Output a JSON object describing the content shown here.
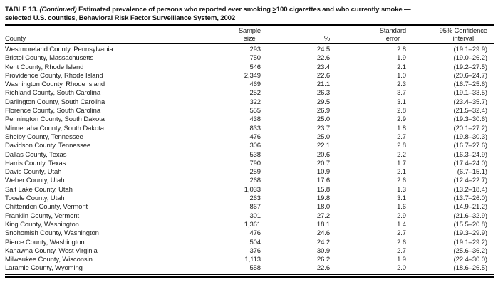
{
  "title": {
    "label": "TABLE 13.",
    "continued": "(Continued)",
    "part1": "Estimated prevalence of persons who reported ever smoking",
    "geq": ">",
    "part2": "100 cigarettes and who currently smoke —",
    "line2": "selected U.S. counties, Behavioral Risk Factor Surveillance System, 2002"
  },
  "table": {
    "columns": {
      "county": "County",
      "sample_line1": "Sample",
      "sample_line2": "size",
      "pct": "%",
      "se_line1": "Standard",
      "se_line2": "error",
      "ci_line1": "95% Confidence",
      "ci_line2": "interval"
    },
    "rows": [
      {
        "county": "Westmoreland County, Pennsylvania",
        "sample": "293",
        "pct": "24.5",
        "se": "2.8",
        "ci": "(19.1–29.9)"
      },
      {
        "county": "Bristol County, Massachusetts",
        "sample": "750",
        "pct": "22.6",
        "se": "1.9",
        "ci": "(19.0–26.2)"
      },
      {
        "county": "Kent County, Rhode Island",
        "sample": "546",
        "pct": "23.4",
        "se": "2.1",
        "ci": "(19.2–27.5)"
      },
      {
        "county": "Providence County, Rhode Island",
        "sample": "2,349",
        "pct": "22.6",
        "se": "1.0",
        "ci": "(20.6–24.7)"
      },
      {
        "county": "Washington County, Rhode Island",
        "sample": "469",
        "pct": "21.1",
        "se": "2.3",
        "ci": "(16.7–25.6)"
      },
      {
        "county": "Richland County, South Carolina",
        "sample": "252",
        "pct": "26.3",
        "se": "3.7",
        "ci": "(19.1–33.5)"
      },
      {
        "county": "Darlington County, South Carolina",
        "sample": "322",
        "pct": "29.5",
        "se": "3.1",
        "ci": "(23.4–35.7)"
      },
      {
        "county": "Florence County, South Carolina",
        "sample": "555",
        "pct": "26.9",
        "se": "2.8",
        "ci": "(21.5–32.4)"
      },
      {
        "county": "Pennington County, South Dakota",
        "sample": "438",
        "pct": "25.0",
        "se": "2.9",
        "ci": "(19.3–30.6)"
      },
      {
        "county": "Minnehaha County, South Dakota",
        "sample": "833",
        "pct": "23.7",
        "se": "1.8",
        "ci": "(20.1–27.2)"
      },
      {
        "county": "Shelby County, Tennessee",
        "sample": "476",
        "pct": "25.0",
        "se": "2.7",
        "ci": "(19.8–30.3)"
      },
      {
        "county": "Davidson County, Tennessee",
        "sample": "306",
        "pct": "22.1",
        "se": "2.8",
        "ci": "(16.7–27.6)"
      },
      {
        "county": "Dallas County, Texas",
        "sample": "538",
        "pct": "20.6",
        "se": "2.2",
        "ci": "(16.3–24.9)"
      },
      {
        "county": "Harris County, Texas",
        "sample": "790",
        "pct": "20.7",
        "se": "1.7",
        "ci": "(17.4–24.0)"
      },
      {
        "county": "Davis County, Utah",
        "sample": "259",
        "pct": "10.9",
        "se": "2.1",
        "ci": "(6.7–15.1)"
      },
      {
        "county": "Weber County, Utah",
        "sample": "268",
        "pct": "17.6",
        "se": "2.6",
        "ci": "(12.4–22.7)"
      },
      {
        "county": "Salt Lake County, Utah",
        "sample": "1,033",
        "pct": "15.8",
        "se": "1.3",
        "ci": "(13.2–18.4)"
      },
      {
        "county": "Tooele County, Utah",
        "sample": "263",
        "pct": "19.8",
        "se": "3.1",
        "ci": "(13.7–26.0)"
      },
      {
        "county": "Chittenden County, Vermont",
        "sample": "867",
        "pct": "18.0",
        "se": "1.6",
        "ci": "(14.9–21.2)"
      },
      {
        "county": "Franklin County, Vermont",
        "sample": "301",
        "pct": "27.2",
        "se": "2.9",
        "ci": "(21.6–32.9)"
      },
      {
        "county": "King County, Washington",
        "sample": "1,361",
        "pct": "18.1",
        "se": "1.4",
        "ci": "(15.5–20.8)"
      },
      {
        "county": "Snohomish County, Washington",
        "sample": "476",
        "pct": "24.6",
        "se": "2.7",
        "ci": "(19.3–29.9)"
      },
      {
        "county": "Pierce County, Washington",
        "sample": "504",
        "pct": "24.2",
        "se": "2.6",
        "ci": "(19.1–29.2)"
      },
      {
        "county": "Kanawha County, West Virginia",
        "sample": "376",
        "pct": "30.9",
        "se": "2.7",
        "ci": "(25.6–36.2)"
      },
      {
        "county": "Milwaukee County, Wisconsin",
        "sample": "1,113",
        "pct": "26.2",
        "se": "1.9",
        "ci": "(22.4–30.0)"
      },
      {
        "county": "Laramie County, Wyoming",
        "sample": "558",
        "pct": "22.6",
        "se": "2.0",
        "ci": "(18.6–26.5)"
      }
    ]
  }
}
